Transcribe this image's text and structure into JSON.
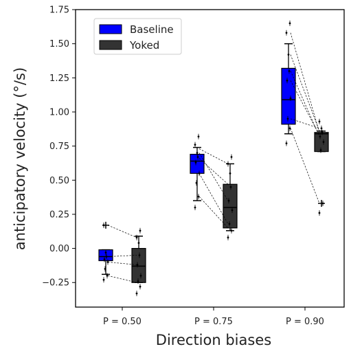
{
  "chart_data": {
    "type": "box",
    "xlabel": "Direction biases",
    "ylabel": "anticipatory velocity (°/s)",
    "categories": [
      "P = 0.50",
      "P = 0.75",
      "P = 0.90"
    ],
    "ylim": [
      -0.43,
      1.75
    ],
    "yticks": [
      -0.25,
      0.0,
      0.25,
      0.5,
      0.75,
      1.0,
      1.25,
      1.5,
      1.75
    ],
    "ytick_labels": [
      "−0.25",
      "0.00",
      "0.25",
      "0.50",
      "0.75",
      "1.00",
      "1.25",
      "1.50",
      "1.75"
    ],
    "legend_position": "top-left",
    "series": [
      {
        "name": "Baseline",
        "color": "#0000ff",
        "boxes": [
          {
            "category": "P = 0.50",
            "whisker_low": -0.19,
            "q1": -0.09,
            "median": -0.06,
            "q3": -0.01,
            "whisker_high": -0.01,
            "outliers": [
              0.17
            ]
          },
          {
            "category": "P = 0.75",
            "whisker_low": 0.35,
            "q1": 0.55,
            "median": 0.64,
            "q3": 0.69,
            "whisker_high": 0.74,
            "outliers": []
          },
          {
            "category": "P = 0.90",
            "whisker_low": 0.84,
            "q1": 0.91,
            "median": 1.09,
            "q3": 1.32,
            "whisker_high": 1.5,
            "outliers": []
          }
        ],
        "points": [
          [
            -0.23,
            -0.2,
            -0.15,
            -0.1,
            -0.08,
            -0.06,
            -0.03,
            0.17
          ],
          [
            0.3,
            0.38,
            0.48,
            0.55,
            0.63,
            0.67,
            0.7,
            0.76,
            0.82
          ],
          [
            0.77,
            0.88,
            0.95,
            1.1,
            1.23,
            1.3,
            1.42,
            1.58,
            1.65
          ]
        ]
      },
      {
        "name": "Yoked",
        "color": "#333333",
        "boxes": [
          {
            "category": "P = 0.50",
            "whisker_low": -0.25,
            "q1": -0.25,
            "median": -0.13,
            "q3": 0.0,
            "whisker_high": 0.09,
            "outliers": []
          },
          {
            "category": "P = 0.75",
            "whisker_low": 0.13,
            "q1": 0.15,
            "median": 0.3,
            "q3": 0.47,
            "whisker_high": 0.62,
            "outliers": []
          },
          {
            "category": "P = 0.90",
            "whisker_low": 0.71,
            "q1": 0.71,
            "median": 0.84,
            "q3": 0.85,
            "whisker_high": 0.86,
            "outliers": [
              0.33
            ]
          }
        ],
        "points": [
          [
            -0.33,
            -0.28,
            -0.24,
            -0.2,
            -0.12,
            -0.05,
            0.04,
            0.08,
            0.13
          ],
          [
            0.08,
            0.13,
            0.18,
            0.28,
            0.35,
            0.45,
            0.55,
            0.62,
            0.67
          ],
          [
            0.26,
            0.33,
            0.72,
            0.78,
            0.82,
            0.85,
            0.88,
            0.93
          ]
        ]
      }
    ],
    "pairs": [
      [
        [
          -0.2,
          -0.25
        ],
        [
          0.17,
          0.08
        ],
        [
          -0.1,
          -0.12
        ],
        [
          -0.06,
          -0.05
        ]
      ],
      [
        [
          0.73,
          0.62
        ],
        [
          0.66,
          0.47
        ],
        [
          0.38,
          0.15
        ],
        [
          0.55,
          0.18
        ],
        [
          0.7,
          0.35
        ]
      ],
      [
        [
          1.58,
          0.85
        ],
        [
          1.3,
          0.82
        ],
        [
          0.95,
          0.88
        ],
        [
          0.88,
          0.33
        ],
        [
          1.23,
          0.83
        ],
        [
          1.42,
          0.86
        ]
      ]
    ]
  }
}
